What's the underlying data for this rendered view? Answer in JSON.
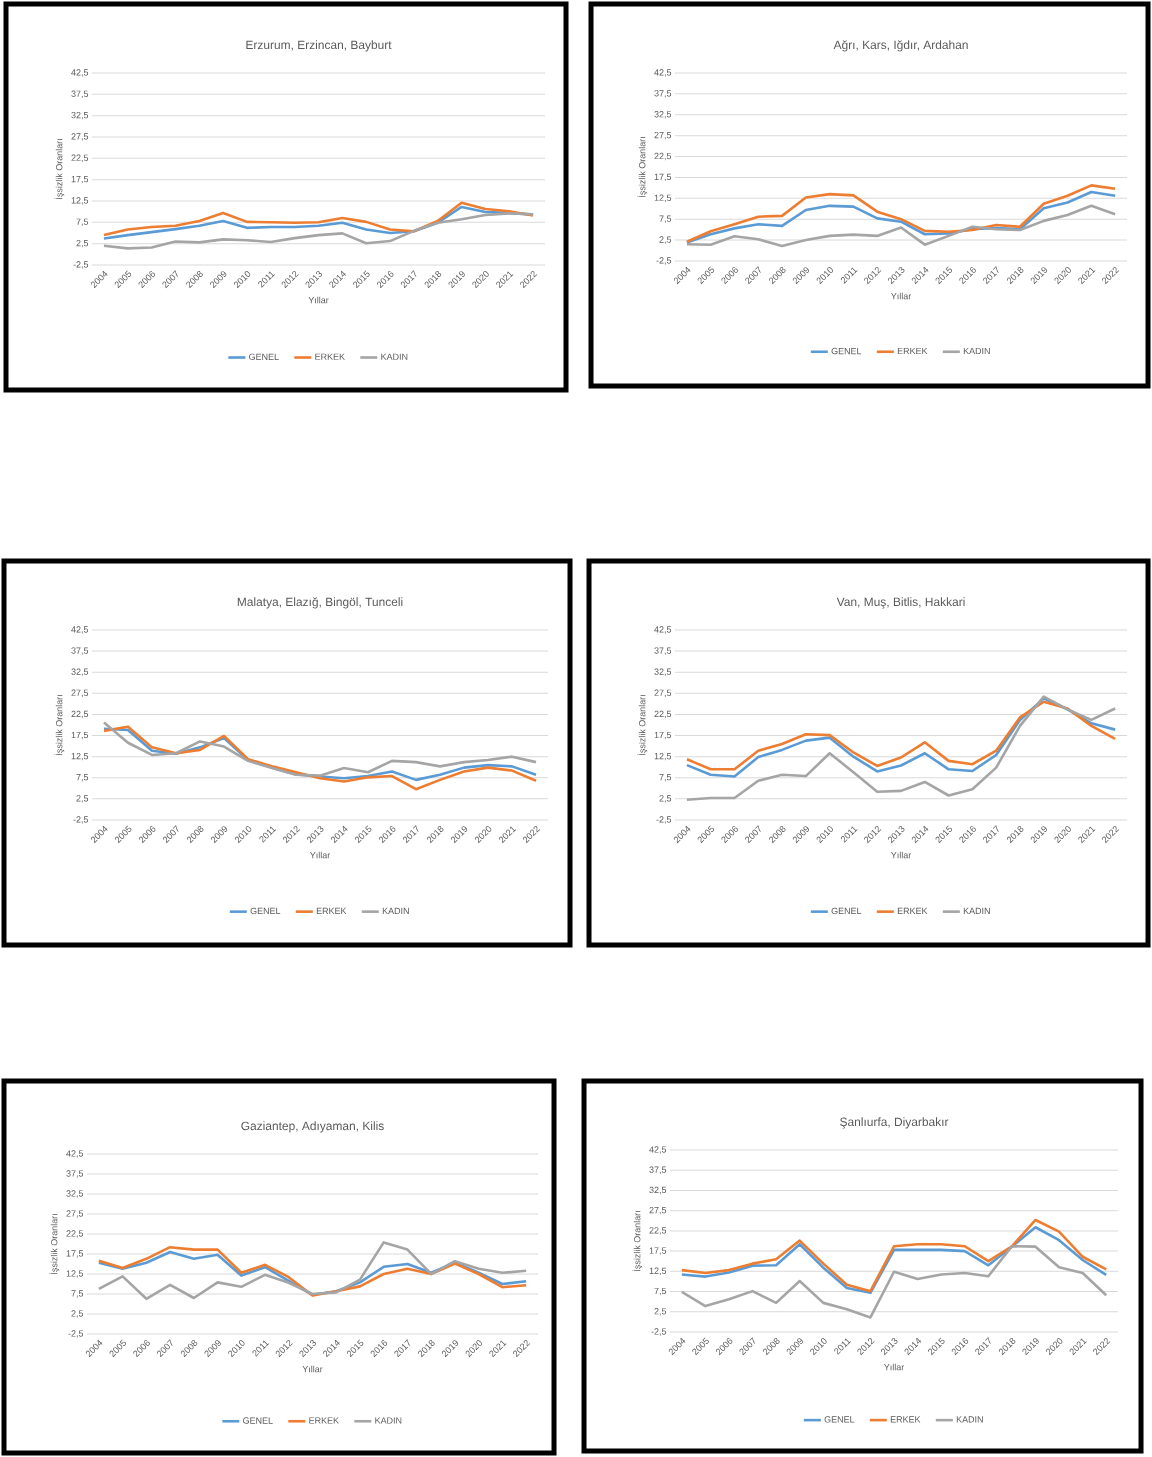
{
  "chart_data": [
    {
      "type": "line",
      "title": "Erzurum, Erzincan, Bayburt",
      "xlabel": "Yıllar",
      "ylabel": "İşsizlik Oranları",
      "categories": [
        "2004",
        "2005",
        "2006",
        "2007",
        "2008",
        "2009",
        "2010",
        "2011",
        "2012",
        "2013",
        "2014",
        "2015",
        "2016",
        "2017",
        "2018",
        "2019",
        "2020",
        "2021",
        "2022"
      ],
      "ylim": [
        -2.5,
        42.5
      ],
      "yticks": [
        {
          "value": -2.5,
          "label": "-2,5"
        },
        {
          "value": 2.5,
          "label": "2,5"
        },
        {
          "value": 7.5,
          "label": "7,5"
        },
        {
          "value": 12.5,
          "label": "12,5"
        },
        {
          "value": 17.5,
          "label": "17,5"
        },
        {
          "value": 22.5,
          "label": "22,5"
        },
        {
          "value": 27.5,
          "label": "27,5"
        },
        {
          "value": 32.5,
          "label": "32,5"
        },
        {
          "value": 37.5,
          "label": "37,5"
        },
        {
          "value": 42.5,
          "label": "42,5"
        }
      ],
      "grid": "y",
      "legend": "bottom",
      "series": [
        {
          "name": "GENEL",
          "color": "#5b9bd5",
          "values": [
            3.7,
            4.5,
            5.2,
            5.9,
            6.7,
            7.8,
            6.2,
            6.4,
            6.4,
            6.7,
            7.4,
            5.8,
            5.0,
            5.4,
            7.4,
            11.1,
            9.9,
            9.7,
            9.3
          ]
        },
        {
          "name": "ERKEK",
          "color": "#ed7d31",
          "values": [
            4.5,
            5.8,
            6.4,
            6.7,
            7.8,
            9.7,
            7.6,
            7.5,
            7.4,
            7.5,
            8.5,
            7.6,
            5.8,
            5.4,
            7.8,
            12.1,
            10.6,
            10.1,
            9.1
          ]
        },
        {
          "name": "KADIN",
          "color": "#a5a5a5",
          "values": [
            2.0,
            1.4,
            1.6,
            3.0,
            2.8,
            3.5,
            3.3,
            2.9,
            3.8,
            4.5,
            4.9,
            2.6,
            3.1,
            5.5,
            7.4,
            8.2,
            9.2,
            9.6,
            9.4
          ]
        }
      ]
    },
    {
      "type": "line",
      "title": "Ağrı, Kars, Iğdır, Ardahan",
      "xlabel": "Yıllar",
      "ylabel": "İşsizlik Oranları",
      "categories": [
        "2004",
        "2005",
        "2006",
        "2007",
        "2008",
        "2009",
        "2010",
        "2011",
        "2012",
        "2013",
        "2014",
        "2015",
        "2016",
        "2017",
        "2018",
        "2019",
        "2020",
        "2021",
        "2022"
      ],
      "ylim": [
        -2.5,
        42.5
      ],
      "yticks": [
        {
          "value": -2.5,
          "label": "-2,5"
        },
        {
          "value": 2.5,
          "label": "2,5"
        },
        {
          "value": 7.5,
          "label": "7,5"
        },
        {
          "value": 12.5,
          "label": "12,5"
        },
        {
          "value": 17.5,
          "label": "17,5"
        },
        {
          "value": 22.5,
          "label": "22,5"
        },
        {
          "value": 27.5,
          "label": "27,5"
        },
        {
          "value": 32.5,
          "label": "32,5"
        },
        {
          "value": 37.5,
          "label": "37,5"
        },
        {
          "value": 42.5,
          "label": "42,5"
        }
      ],
      "grid": "y",
      "legend": "bottom",
      "series": [
        {
          "name": "GENEL",
          "color": "#5b9bd5",
          "values": [
            1.9,
            3.9,
            5.3,
            6.3,
            5.9,
            9.7,
            10.7,
            10.5,
            7.7,
            6.9,
            3.9,
            4.1,
            5.1,
            5.4,
            5.1,
            10.1,
            11.5,
            14.0,
            13.1
          ]
        },
        {
          "name": "ERKEK",
          "color": "#ed7d31",
          "values": [
            2.1,
            4.6,
            6.3,
            8.1,
            8.3,
            12.7,
            13.5,
            13.2,
            9.3,
            7.5,
            4.7,
            4.5,
            4.9,
            6.1,
            5.7,
            11.2,
            13.1,
            15.6,
            14.8
          ]
        },
        {
          "name": "KADIN",
          "color": "#a5a5a5",
          "values": [
            1.5,
            1.4,
            3.4,
            2.7,
            1.1,
            2.5,
            3.5,
            3.8,
            3.5,
            5.5,
            1.4,
            3.5,
            5.7,
            5.1,
            4.9,
            7.1,
            8.5,
            10.7,
            8.7
          ]
        }
      ]
    },
    {
      "type": "line",
      "title": "Malatya, Elazığ, Bingöl, Tunceli",
      "xlabel": "Yıllar",
      "ylabel": "İşsizlik Oranları",
      "categories": [
        "2004",
        "2005",
        "2006",
        "2007",
        "2008",
        "2009",
        "2010",
        "2011",
        "2012",
        "2013",
        "2014",
        "2015",
        "2016",
        "2017",
        "2018",
        "2019",
        "2020",
        "2021",
        "2022"
      ],
      "ylim": [
        -2.5,
        42.5
      ],
      "yticks": [
        {
          "value": -2.5,
          "label": "-2,5"
        },
        {
          "value": 2.5,
          "label": "2,5"
        },
        {
          "value": 7.5,
          "label": "7,5"
        },
        {
          "value": 12.5,
          "label": "12,5"
        },
        {
          "value": 17.5,
          "label": "17,5"
        },
        {
          "value": 22.5,
          "label": "22,5"
        },
        {
          "value": 27.5,
          "label": "27,5"
        },
        {
          "value": 32.5,
          "label": "32,5"
        },
        {
          "value": 37.5,
          "label": "37,5"
        },
        {
          "value": 42.5,
          "label": "42,5"
        }
      ],
      "grid": "y",
      "legend": "bottom",
      "series": [
        {
          "name": "GENEL",
          "color": "#5b9bd5",
          "values": [
            19.1,
            18.8,
            13.9,
            13.2,
            14.7,
            16.9,
            11.7,
            9.9,
            8.3,
            7.8,
            7.4,
            7.9,
            9.0,
            7.0,
            8.2,
            9.9,
            10.5,
            10.2,
            8.2
          ]
        },
        {
          "name": "ERKEK",
          "color": "#ed7d31",
          "values": [
            18.6,
            19.6,
            14.7,
            13.3,
            14.1,
            17.4,
            11.9,
            10.2,
            8.8,
            7.4,
            6.6,
            7.6,
            7.9,
            4.8,
            7.0,
            9.0,
            9.9,
            9.2,
            6.8
          ]
        },
        {
          "name": "KADIN",
          "color": "#a5a5a5",
          "values": [
            20.6,
            15.8,
            12.9,
            13.3,
            16.1,
            14.9,
            11.5,
            9.8,
            8.2,
            8.0,
            9.8,
            8.8,
            11.5,
            11.2,
            10.2,
            11.2,
            11.7,
            12.5,
            11.2
          ]
        }
      ]
    },
    {
      "type": "line",
      "title": "Van, Muş, Bitlis, Hakkari",
      "xlabel": "Yıllar",
      "ylabel": "İşsizlik Oranları",
      "categories": [
        "2004",
        "2005",
        "2006",
        "2007",
        "2008",
        "2009",
        "2010",
        "2011",
        "2012",
        "2013",
        "2014",
        "2015",
        "2016",
        "2017",
        "2018",
        "2019",
        "2020",
        "2021",
        "2022"
      ],
      "ylim": [
        -2.5,
        42.5
      ],
      "yticks": [
        {
          "value": -2.5,
          "label": "-2,5"
        },
        {
          "value": 2.5,
          "label": "2,5"
        },
        {
          "value": 7.5,
          "label": "7,5"
        },
        {
          "value": 12.5,
          "label": "12,5"
        },
        {
          "value": 17.5,
          "label": "17,5"
        },
        {
          "value": 22.5,
          "label": "22,5"
        },
        {
          "value": 27.5,
          "label": "27,5"
        },
        {
          "value": 32.5,
          "label": "32,5"
        },
        {
          "value": 37.5,
          "label": "37,5"
        },
        {
          "value": 42.5,
          "label": "42,5"
        }
      ],
      "grid": "y",
      "legend": "bottom",
      "series": [
        {
          "name": "GENEL",
          "color": "#5b9bd5",
          "values": [
            10.5,
            8.2,
            7.8,
            12.4,
            14.1,
            16.3,
            17.0,
            12.5,
            9.0,
            10.4,
            13.3,
            9.5,
            9.1,
            12.9,
            21.2,
            26.3,
            23.7,
            20.4,
            18.9
          ]
        },
        {
          "name": "ERKEK",
          "color": "#ed7d31",
          "values": [
            11.9,
            9.5,
            9.5,
            13.9,
            15.5,
            17.8,
            17.6,
            13.5,
            10.3,
            12.3,
            15.9,
            11.5,
            10.7,
            13.9,
            21.8,
            25.5,
            23.9,
            19.8,
            16.7
          ]
        },
        {
          "name": "KADIN",
          "color": "#a5a5a5",
          "values": [
            2.3,
            2.7,
            2.7,
            6.8,
            8.2,
            7.9,
            13.3,
            8.8,
            4.2,
            4.4,
            6.5,
            3.3,
            4.8,
            9.9,
            19.8,
            26.7,
            23.7,
            21.2,
            23.9
          ]
        }
      ]
    },
    {
      "type": "line",
      "title": "Gaziantep, Adıyaman, Kilis",
      "xlabel": "Yıllar",
      "ylabel": "İşsizlik Oranları",
      "categories": [
        "2004",
        "2005",
        "2006",
        "2007",
        "2008",
        "2009",
        "2010",
        "2011",
        "2012",
        "2013",
        "2014",
        "2015",
        "2016",
        "2017",
        "2018",
        "2019",
        "2020",
        "2021",
        "2022"
      ],
      "ylim": [
        -2.5,
        42.5
      ],
      "yticks": [
        {
          "value": -2.5,
          "label": "-2,5"
        },
        {
          "value": 2.5,
          "label": "2,5"
        },
        {
          "value": 7.5,
          "label": "7,5"
        },
        {
          "value": 12.5,
          "label": "12,5"
        },
        {
          "value": 17.5,
          "label": "17,5"
        },
        {
          "value": 22.5,
          "label": "22,5"
        },
        {
          "value": 27.5,
          "label": "27,5"
        },
        {
          "value": 32.5,
          "label": "32,5"
        },
        {
          "value": 37.5,
          "label": "37,5"
        },
        {
          "value": 42.5,
          "label": "42,5"
        }
      ],
      "grid": "y",
      "legend": "bottom",
      "series": [
        {
          "name": "GENEL",
          "color": "#5b9bd5",
          "values": [
            15.3,
            13.8,
            15.3,
            18.0,
            16.3,
            17.3,
            12.1,
            14.2,
            10.8,
            7.3,
            8.2,
            10.4,
            14.3,
            15.0,
            12.8,
            15.3,
            12.8,
            10.0,
            10.7
          ]
        },
        {
          "name": "ERKEK",
          "color": "#ed7d31",
          "values": [
            15.8,
            14.0,
            16.3,
            19.2,
            18.6,
            18.6,
            12.8,
            14.8,
            11.7,
            7.1,
            8.2,
            9.4,
            12.5,
            13.8,
            12.5,
            15.1,
            12.5,
            9.2,
            9.7
          ]
        },
        {
          "name": "KADIN",
          "color": "#a5a5a5",
          "values": [
            8.8,
            11.9,
            6.3,
            9.8,
            6.5,
            10.4,
            9.3,
            12.3,
            10.3,
            7.5,
            7.9,
            11.1,
            20.4,
            18.6,
            12.5,
            15.7,
            13.8,
            12.8,
            13.3
          ]
        }
      ]
    },
    {
      "type": "line",
      "title": "Şanlıurfa, Diyarbakır",
      "xlabel": "Yıllar",
      "ylabel": "İşsizlik Oranları",
      "categories": [
        "2004",
        "2005",
        "2006",
        "2007",
        "2008",
        "2009",
        "2010",
        "2011",
        "2012",
        "2013",
        "2014",
        "2015",
        "2016",
        "2017",
        "2018",
        "2019",
        "2020",
        "2021",
        "2022"
      ],
      "ylim": [
        -2.5,
        42.5
      ],
      "yticks": [
        {
          "value": -2.5,
          "label": "-2,5"
        },
        {
          "value": 2.5,
          "label": "2,5"
        },
        {
          "value": 7.5,
          "label": "7,5"
        },
        {
          "value": 12.5,
          "label": "12,5"
        },
        {
          "value": 17.5,
          "label": "17,5"
        },
        {
          "value": 22.5,
          "label": "22,5"
        },
        {
          "value": 27.5,
          "label": "27,5"
        },
        {
          "value": 32.5,
          "label": "32,5"
        },
        {
          "value": 37.5,
          "label": "37,5"
        },
        {
          "value": 42.5,
          "label": "42,5"
        }
      ],
      "grid": "y",
      "legend": "bottom",
      "series": [
        {
          "name": "GENEL",
          "color": "#5b9bd5",
          "values": [
            11.7,
            11.2,
            12.2,
            13.9,
            14.0,
            19.2,
            13.4,
            8.4,
            7.2,
            17.8,
            17.8,
            17.8,
            17.5,
            14.0,
            18.6,
            23.4,
            20.2,
            15.3,
            11.6
          ]
        },
        {
          "name": "ERKEK",
          "color": "#ed7d31",
          "values": [
            12.8,
            12.1,
            12.8,
            14.4,
            15.5,
            20.1,
            14.4,
            9.2,
            7.6,
            18.7,
            19.2,
            19.2,
            18.7,
            15.0,
            18.7,
            25.2,
            22.3,
            16.1,
            13.0
          ]
        },
        {
          "name": "KADIN",
          "color": "#a5a5a5",
          "values": [
            7.4,
            3.9,
            5.6,
            7.6,
            4.7,
            10.1,
            4.7,
            3.1,
            1.1,
            12.4,
            10.6,
            11.7,
            12.1,
            11.3,
            18.7,
            18.6,
            13.5,
            12.1,
            6.6
          ]
        }
      ]
    }
  ]
}
